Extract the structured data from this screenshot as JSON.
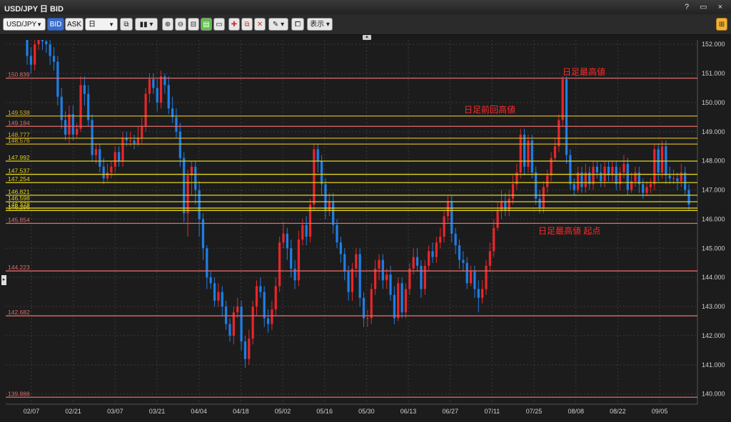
{
  "window": {
    "title": "USD/JPY 日 BID",
    "controls": "? ▭ ×"
  },
  "toolbar": {
    "symbol": "USD/JPY",
    "bid_label": "BID",
    "ask_label": "ASK",
    "period": "日",
    "display_label": "表示"
  },
  "chart_data": {
    "type": "candlestick",
    "y_ticks": [
      "152.000",
      "151.000",
      "150.000",
      "149.000",
      "148.000",
      "147.000",
      "146.000",
      "145.000",
      "144.000",
      "143.000",
      "142.000",
      "141.000",
      "140.000"
    ],
    "x_ticks": [
      "02/07",
      "02/21",
      "03/07",
      "03/21",
      "04/04",
      "04/18",
      "05/02",
      "05/16",
      "05/30",
      "06/13",
      "06/27",
      "07/11",
      "07/25",
      "08/08",
      "08/22",
      "09/05"
    ],
    "ylim": [
      139.65,
      152.15
    ],
    "up_color": "#e8262b",
    "down_color": "#1e7ee8",
    "horizontal_lines": [
      {
        "value": 150.839,
        "label": "150.839",
        "color": "#e06a6a"
      },
      {
        "value": 149.538,
        "label": "149.538",
        "color": "#d4b21e"
      },
      {
        "value": 149.184,
        "label": "149.184",
        "color": "#e06a6a"
      },
      {
        "value": 148.777,
        "label": "148.777",
        "color": "#d4b21e"
      },
      {
        "value": 148.576,
        "label": "148.576",
        "color": "#d4b21e"
      },
      {
        "value": 147.992,
        "label": "147.992",
        "color": "#e3d31a"
      },
      {
        "value": 147.537,
        "label": "147.537",
        "color": "#e3d31a"
      },
      {
        "value": 147.254,
        "label": "147.254",
        "color": "#e3d31a"
      },
      {
        "value": 146.821,
        "label": "146.821",
        "color": "#e3d31a"
      },
      {
        "value": 146.598,
        "label": "146.598",
        "color": "#e3d31a"
      },
      {
        "value": 146.378,
        "label": "146.378",
        "color": "#e3d31a"
      },
      {
        "value": 146.296,
        "label": "146.296",
        "color": "#e3d31a"
      },
      {
        "value": 145.854,
        "label": "145.854",
        "color": "#e06a6a"
      },
      {
        "value": 144.223,
        "label": "144.223",
        "color": "#e06a6a"
      },
      {
        "value": 142.682,
        "label": "142.682",
        "color": "#e06a6a"
      },
      {
        "value": 139.888,
        "label": "139.888",
        "color": "#e06a6a"
      }
    ],
    "annotations": [
      {
        "text": "日足最高値",
        "value": 151.05
      },
      {
        "text": "日足前回高値",
        "value": 149.75
      },
      {
        "text": "日足最高値 起点",
        "value": 145.6
      }
    ],
    "candles": [
      [
        152.2,
        151.6,
        152.5,
        151.3
      ],
      [
        151.6,
        151.3,
        151.9,
        151.0
      ],
      [
        151.3,
        152.0,
        152.3,
        151.1
      ],
      [
        152.0,
        152.3,
        152.6,
        151.8
      ],
      [
        152.3,
        152.1,
        152.6,
        151.8
      ],
      [
        152.1,
        152.0,
        152.4,
        151.7
      ],
      [
        152.0,
        151.6,
        152.2,
        151.3
      ],
      [
        151.6,
        151.4,
        151.9,
        151.1
      ],
      [
        151.4,
        150.2,
        151.6,
        149.9
      ],
      [
        150.2,
        149.4,
        150.5,
        149.1
      ],
      [
        149.4,
        148.9,
        149.7,
        148.7
      ],
      [
        148.9,
        149.6,
        149.9,
        148.6
      ],
      [
        149.6,
        148.9,
        149.9,
        148.7
      ],
      [
        148.9,
        149.1,
        149.3,
        148.8
      ],
      [
        149.1,
        150.6,
        150.9,
        149.0
      ],
      [
        150.6,
        150.3,
        150.9,
        149.9
      ],
      [
        150.3,
        149.4,
        150.6,
        149.2
      ],
      [
        149.4,
        148.2,
        149.6,
        148.0
      ],
      [
        148.2,
        148.4,
        148.6,
        147.9
      ],
      [
        148.4,
        147.8,
        148.6,
        147.6
      ],
      [
        147.8,
        147.4,
        148.1,
        147.2
      ],
      [
        147.4,
        147.6,
        147.9,
        147.3
      ],
      [
        147.6,
        147.8,
        148.0,
        147.4
      ],
      [
        147.8,
        148.3,
        148.5,
        147.6
      ],
      [
        148.3,
        148.0,
        148.5,
        147.8
      ],
      [
        148.0,
        148.8,
        149.0,
        147.8
      ],
      [
        148.8,
        148.7,
        149.0,
        148.5
      ],
      [
        148.7,
        148.7,
        149.0,
        148.5
      ],
      [
        148.7,
        148.6,
        148.9,
        148.4
      ],
      [
        148.6,
        148.8,
        149.2,
        148.5
      ],
      [
        148.8,
        149.2,
        149.5,
        148.6
      ],
      [
        149.2,
        150.3,
        150.5,
        149.0
      ],
      [
        150.3,
        150.8,
        151.0,
        150.0
      ],
      [
        150.8,
        150.5,
        151.0,
        150.3
      ],
      [
        150.5,
        150.0,
        150.8,
        149.7
      ],
      [
        150.0,
        150.9,
        151.1,
        149.8
      ],
      [
        150.9,
        150.6,
        151.0,
        150.3
      ],
      [
        150.6,
        149.8,
        150.9,
        149.6
      ],
      [
        149.8,
        149.5,
        150.2,
        149.3
      ],
      [
        149.5,
        149.0,
        149.8,
        148.8
      ],
      [
        149.0,
        148.1,
        149.3,
        147.8
      ],
      [
        148.1,
        146.2,
        148.3,
        145.9
      ],
      [
        146.2,
        147.5,
        147.7,
        145.4
      ],
      [
        147.5,
        147.8,
        148.0,
        146.8
      ],
      [
        147.8,
        147.0,
        148.0,
        146.5
      ],
      [
        147.0,
        146.0,
        147.3,
        145.4
      ],
      [
        146.0,
        145.0,
        146.2,
        144.6
      ],
      [
        145.0,
        144.0,
        145.1,
        143.6
      ],
      [
        144.0,
        143.8,
        144.2,
        143.6
      ],
      [
        143.8,
        143.2,
        144.0,
        143.0
      ],
      [
        143.2,
        143.5,
        143.8,
        143.0
      ],
      [
        143.5,
        143.0,
        143.7,
        142.7
      ],
      [
        143.0,
        142.4,
        143.2,
        142.2
      ],
      [
        142.4,
        142.0,
        142.6,
        141.8
      ],
      [
        142.0,
        142.8,
        143.0,
        141.7
      ],
      [
        142.8,
        143.0,
        143.3,
        142.6
      ],
      [
        143.0,
        141.8,
        143.2,
        141.5
      ],
      [
        141.8,
        141.2,
        142.0,
        140.9
      ],
      [
        141.2,
        141.9,
        142.2,
        141.0
      ],
      [
        141.9,
        143.0,
        143.2,
        141.7
      ],
      [
        143.0,
        143.7,
        143.9,
        142.7
      ],
      [
        143.7,
        143.5,
        144.0,
        143.3
      ],
      [
        143.5,
        142.6,
        143.7,
        142.3
      ],
      [
        142.6,
        142.4,
        142.9,
        142.1
      ],
      [
        142.4,
        142.9,
        143.2,
        142.2
      ],
      [
        142.9,
        143.7,
        144.0,
        142.7
      ],
      [
        143.7,
        145.2,
        145.4,
        143.5
      ],
      [
        145.2,
        145.5,
        145.9,
        145.0
      ],
      [
        145.5,
        145.0,
        145.7,
        144.6
      ],
      [
        145.0,
        144.3,
        145.3,
        144.0
      ],
      [
        144.3,
        143.9,
        144.6,
        143.6
      ],
      [
        143.9,
        145.3,
        145.6,
        143.7
      ],
      [
        145.3,
        145.8,
        146.0,
        145.1
      ],
      [
        145.8,
        145.4,
        146.1,
        145.1
      ],
      [
        145.4,
        146.5,
        146.7,
        145.2
      ],
      [
        146.5,
        148.4,
        148.6,
        146.3
      ],
      [
        148.4,
        148.0,
        148.6,
        147.6
      ],
      [
        148.0,
        147.2,
        148.2,
        146.8
      ],
      [
        147.2,
        146.3,
        147.4,
        146.0
      ],
      [
        146.3,
        146.6,
        146.9,
        146.1
      ],
      [
        146.6,
        145.8,
        146.9,
        145.5
      ],
      [
        145.8,
        145.2,
        146.0,
        145.0
      ],
      [
        145.2,
        144.8,
        145.4,
        144.5
      ],
      [
        144.8,
        144.2,
        145.0,
        143.9
      ],
      [
        144.2,
        143.5,
        144.4,
        143.2
      ],
      [
        143.5,
        144.3,
        144.5,
        143.2
      ],
      [
        144.3,
        144.8,
        145.0,
        144.0
      ],
      [
        144.8,
        143.3,
        145.0,
        143.0
      ],
      [
        143.3,
        142.6,
        143.5,
        142.3
      ],
      [
        142.6,
        142.6,
        142.9,
        142.3
      ],
      [
        142.6,
        143.6,
        143.8,
        142.4
      ],
      [
        143.6,
        144.3,
        144.6,
        143.4
      ],
      [
        144.3,
        144.6,
        144.8,
        143.9
      ],
      [
        144.6,
        143.9,
        144.8,
        143.6
      ],
      [
        143.9,
        144.1,
        144.3,
        143.6
      ],
      [
        144.1,
        143.4,
        144.4,
        143.2
      ],
      [
        143.4,
        142.6,
        143.7,
        142.4
      ],
      [
        142.6,
        143.8,
        144.0,
        142.5
      ],
      [
        143.8,
        142.8,
        144.0,
        142.6
      ],
      [
        142.8,
        143.6,
        143.8,
        142.6
      ],
      [
        143.6,
        144.3,
        144.5,
        143.4
      ],
      [
        144.3,
        144.7,
        145.0,
        144.1
      ],
      [
        144.7,
        144.4,
        145.0,
        144.2
      ],
      [
        144.4,
        143.6,
        144.6,
        143.3
      ],
      [
        143.6,
        144.4,
        144.6,
        143.4
      ],
      [
        144.4,
        144.9,
        145.1,
        144.2
      ],
      [
        144.9,
        144.7,
        145.2,
        144.5
      ],
      [
        144.7,
        145.2,
        145.4,
        144.5
      ],
      [
        145.2,
        145.4,
        145.7,
        145.0
      ],
      [
        145.4,
        146.1,
        146.3,
        145.2
      ],
      [
        146.1,
        146.6,
        146.8,
        145.9
      ],
      [
        146.6,
        145.5,
        146.8,
        145.2
      ],
      [
        145.5,
        145.1,
        145.7,
        144.8
      ],
      [
        145.1,
        144.6,
        145.3,
        144.3
      ],
      [
        144.6,
        144.5,
        144.9,
        144.2
      ],
      [
        144.5,
        143.8,
        144.7,
        143.6
      ],
      [
        143.8,
        144.2,
        144.4,
        143.7
      ],
      [
        144.2,
        143.6,
        144.4,
        143.3
      ],
      [
        143.6,
        143.3,
        143.9,
        142.8
      ],
      [
        143.3,
        143.6,
        143.9,
        143.1
      ],
      [
        143.6,
        144.4,
        144.6,
        143.4
      ],
      [
        144.4,
        144.9,
        145.2,
        144.2
      ],
      [
        144.9,
        145.7,
        146.0,
        144.7
      ],
      [
        145.7,
        146.3,
        146.6,
        145.6
      ],
      [
        146.3,
        146.6,
        147.0,
        146.0
      ],
      [
        146.6,
        146.3,
        146.9,
        146.1
      ],
      [
        146.3,
        146.7,
        147.0,
        146.1
      ],
      [
        146.7,
        147.2,
        147.5,
        146.5
      ],
      [
        147.2,
        147.6,
        147.9,
        147.0
      ],
      [
        147.6,
        148.9,
        149.1,
        147.4
      ],
      [
        148.9,
        147.8,
        149.1,
        147.5
      ],
      [
        147.8,
        148.7,
        148.9,
        147.6
      ],
      [
        148.7,
        147.6,
        148.9,
        147.4
      ],
      [
        147.6,
        146.7,
        147.8,
        146.5
      ],
      [
        146.7,
        146.4,
        147.0,
        146.2
      ],
      [
        146.4,
        147.1,
        147.3,
        146.2
      ],
      [
        147.1,
        147.5,
        147.7,
        146.9
      ],
      [
        147.5,
        148.1,
        148.3,
        147.3
      ],
      [
        148.1,
        148.5,
        148.8,
        148.0
      ],
      [
        148.5,
        149.4,
        149.6,
        148.3
      ],
      [
        149.4,
        150.8,
        150.9,
        149.2
      ],
      [
        150.8,
        148.2,
        150.9,
        147.9
      ],
      [
        148.2,
        147.2,
        148.4,
        147.0
      ],
      [
        147.2,
        147.0,
        147.4,
        146.8
      ],
      [
        147.0,
        147.6,
        147.8,
        146.9
      ],
      [
        147.6,
        147.1,
        147.8,
        146.9
      ],
      [
        147.1,
        147.6,
        147.9,
        146.9
      ],
      [
        147.6,
        147.2,
        147.8,
        147.0
      ],
      [
        147.2,
        147.8,
        148.0,
        147.0
      ],
      [
        147.8,
        147.6,
        148.0,
        147.4
      ],
      [
        147.6,
        147.3,
        147.9,
        147.1
      ],
      [
        147.3,
        147.8,
        148.0,
        147.1
      ],
      [
        147.8,
        147.5,
        148.0,
        147.3
      ],
      [
        147.5,
        147.8,
        148.0,
        147.3
      ],
      [
        147.8,
        147.2,
        148.0,
        147.0
      ],
      [
        147.2,
        147.6,
        147.8,
        147.0
      ],
      [
        147.6,
        147.9,
        148.2,
        147.4
      ],
      [
        147.9,
        147.0,
        148.1,
        146.8
      ],
      [
        147.0,
        147.3,
        147.6,
        146.9
      ],
      [
        147.3,
        147.6,
        147.8,
        147.1
      ],
      [
        147.6,
        147.2,
        147.8,
        146.9
      ],
      [
        147.2,
        146.9,
        147.4,
        146.7
      ],
      [
        146.9,
        147.1,
        147.3,
        146.8
      ],
      [
        147.1,
        147.2,
        147.4,
        146.9
      ],
      [
        147.2,
        148.4,
        148.6,
        147.0
      ],
      [
        148.4,
        147.6,
        148.6,
        147.3
      ],
      [
        147.6,
        148.5,
        148.7,
        147.4
      ],
      [
        148.5,
        147.5,
        148.7,
        147.2
      ],
      [
        147.5,
        147.4,
        147.8,
        147.2
      ],
      [
        147.4,
        147.4,
        147.7,
        147.2
      ],
      [
        147.4,
        147.3,
        147.6,
        147.0
      ],
      [
        147.3,
        147.6,
        147.9,
        147.1
      ],
      [
        147.6,
        147.0,
        147.8,
        146.8
      ],
      [
        147.0,
        146.5,
        147.2,
        146.3
      ]
    ]
  }
}
